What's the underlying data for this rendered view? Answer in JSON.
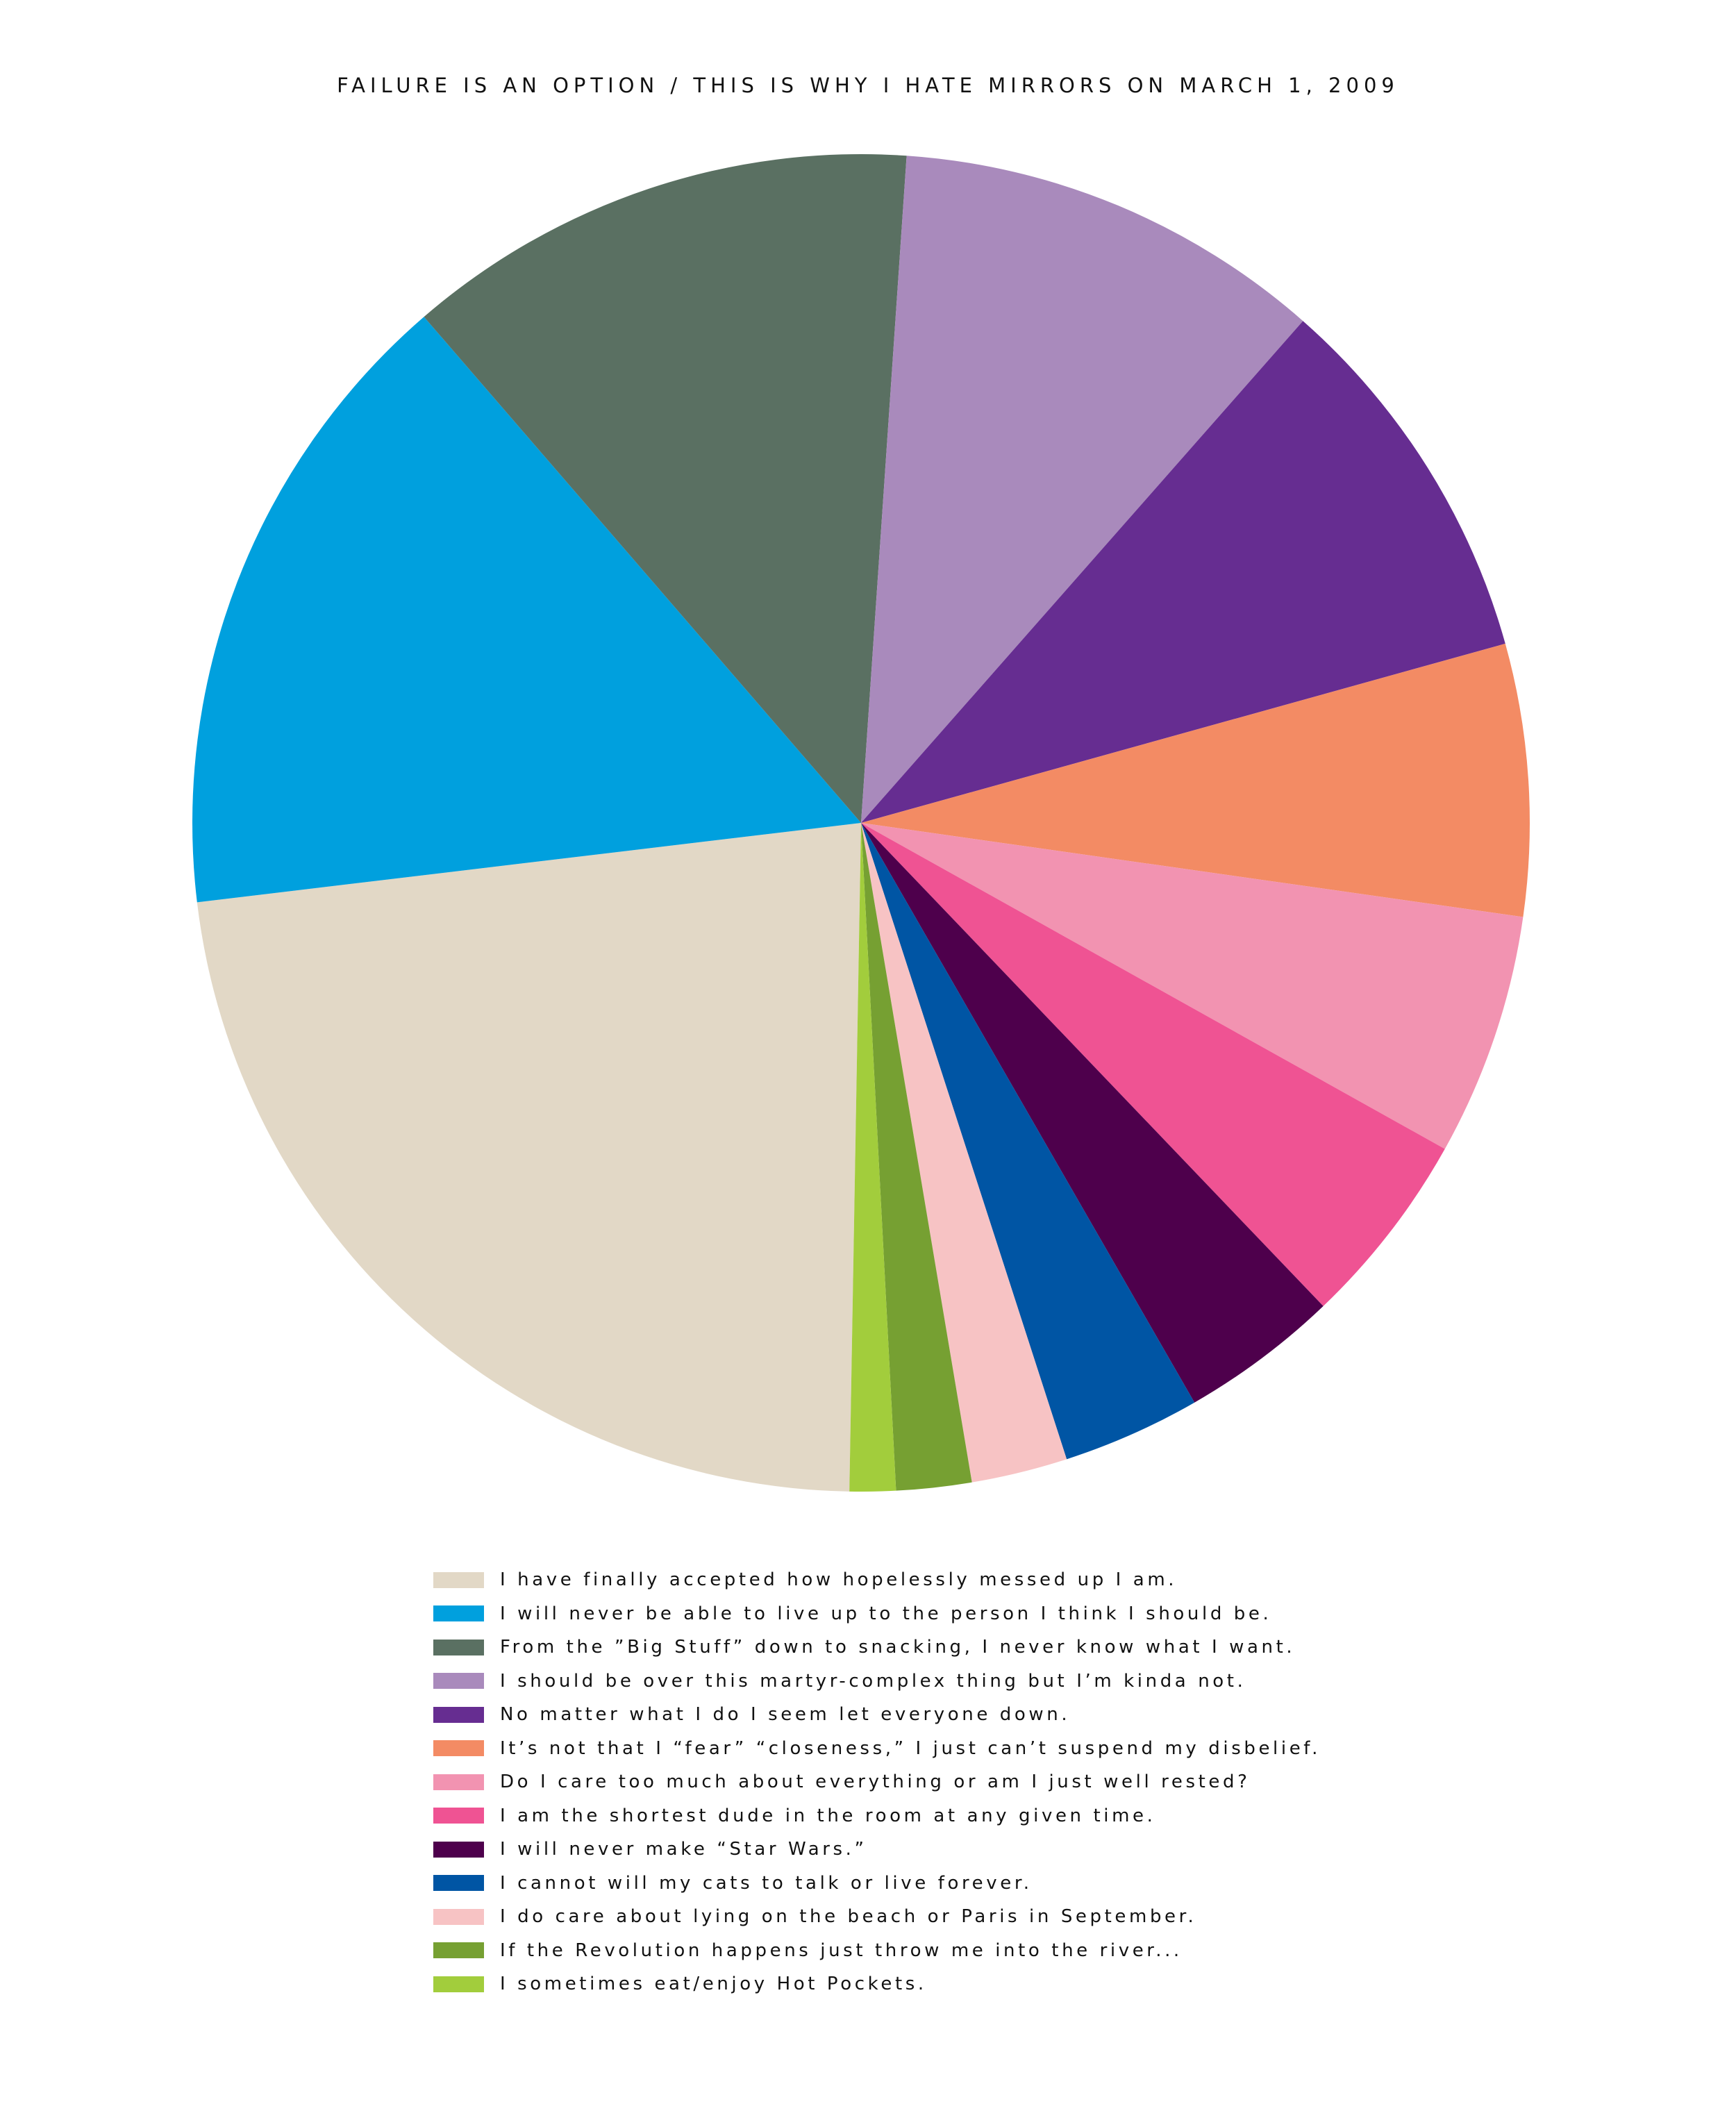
{
  "chart_data": {
    "type": "pie",
    "title": "FAILURE IS AN OPTION / THIS IS WHY I HATE MIRRORS ON MARCH 1, 2009",
    "legend_placement": "bottom",
    "slices": [
      {
        "label": "I have finally accepted how hopelessly messed up I am.",
        "value": 22.6,
        "color": "#E2D8C6"
      },
      {
        "label": "I will never be able to live up to the person I think I should be.",
        "value": 15.4,
        "color": "#00A0DE"
      },
      {
        "label": "From the ”Big Stuff” down to snacking, I never know what I want.",
        "value": 12.3,
        "color": "#5A7062"
      },
      {
        "label": "I should be over this martyr-complex thing but I’m kinda not.",
        "value": 10.3,
        "color": "#A98ABC"
      },
      {
        "label": "No matter what I do I seem let everyone down.",
        "value": 9.1,
        "color": "#662D91"
      },
      {
        "label": "It’s not that I “fear” “closeness,” I just can’t suspend my disbelief.",
        "value": 6.5,
        "color": "#F38B64"
      },
      {
        "label": "Do I care too much about everything or am I just well rested?",
        "value": 5.8,
        "color": "#F293B1"
      },
      {
        "label": "I am the shortest dude in the room at any given time.",
        "value": 4.7,
        "color": "#EF5393"
      },
      {
        "label": "I will never make “Star Wars.”",
        "value": 3.8,
        "color": "#4E004C"
      },
      {
        "label": "I cannot will my cats to talk or live forever.",
        "value": 3.3,
        "color": "#0055A4"
      },
      {
        "label": "I do care about lying on the beach or Paris in September.",
        "value": 2.3,
        "color": "#F7C3C4"
      },
      {
        "label": "If the Revolution happens just throw me into the river...",
        "value": 1.8,
        "color": "#76A032"
      },
      {
        "label": "I sometimes eat/enjoy Hot Pockets.",
        "value": 1.1,
        "color": "#A2CD3C"
      }
    ]
  }
}
